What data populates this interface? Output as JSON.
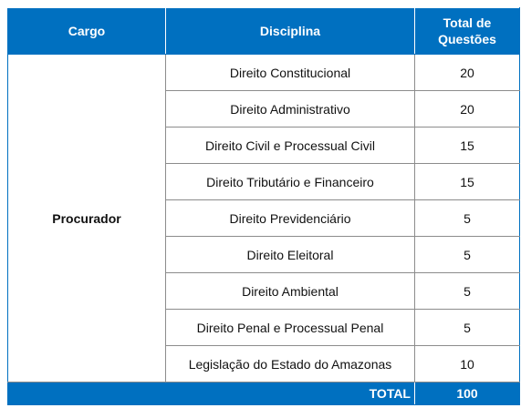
{
  "table": {
    "headers": {
      "cargo": "Cargo",
      "disciplina": "Disciplina",
      "total_questoes_line1": "Total de",
      "total_questoes_line2": "Questões"
    },
    "cargo": "Procurador",
    "rows": [
      {
        "disciplina": "Direito Constitucional",
        "questoes": "20"
      },
      {
        "disciplina": "Direito Administrativo",
        "questoes": "20"
      },
      {
        "disciplina": "Direito Civil e Processual Civil",
        "questoes": "15"
      },
      {
        "disciplina": "Direito Tributário e Financeiro",
        "questoes": "15"
      },
      {
        "disciplina": "Direito Previdenciário",
        "questoes": "5"
      },
      {
        "disciplina": "Direito Eleitoral",
        "questoes": "5"
      },
      {
        "disciplina": "Direito Ambiental",
        "questoes": "5"
      },
      {
        "disciplina": "Direito Penal e Processual Penal",
        "questoes": "5"
      },
      {
        "disciplina": "Legislação do Estado do Amazonas",
        "questoes": "10"
      }
    ],
    "total_label": "TOTAL",
    "total_value": "100"
  },
  "colors": {
    "header_bg": "#0070c0",
    "header_text": "#ffffff",
    "grid_line": "#8c8c8c"
  }
}
